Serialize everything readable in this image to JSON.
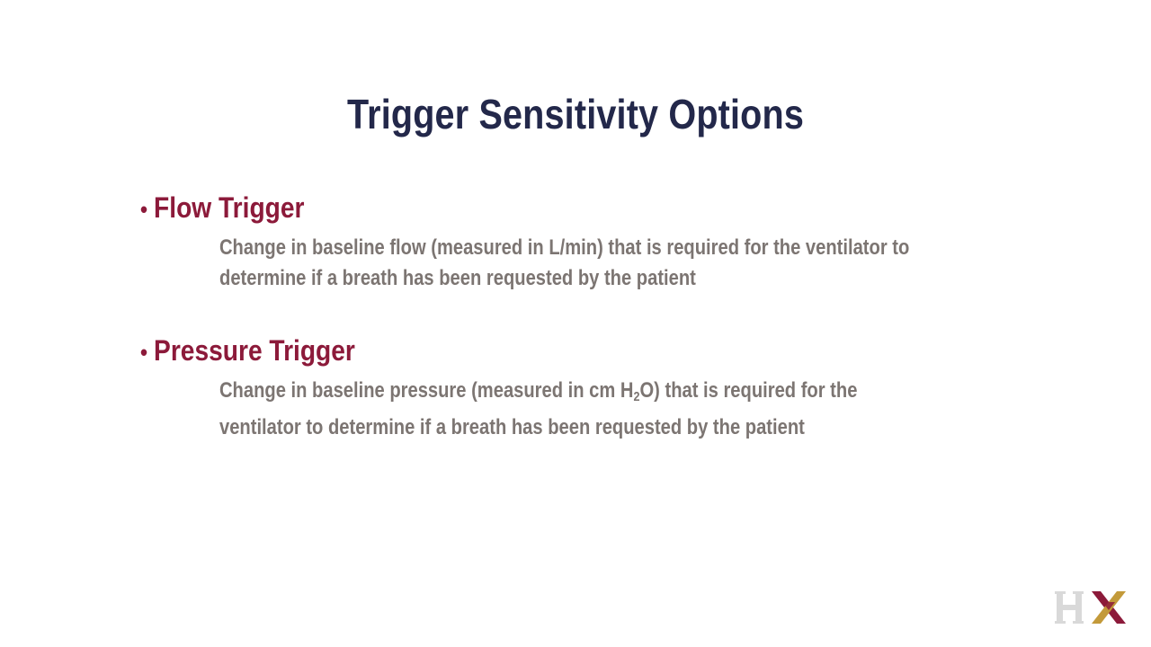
{
  "slide": {
    "title": "Trigger Sensitivity Options"
  },
  "bullets": [
    {
      "heading": "Flow Trigger",
      "lines": [
        "Change in baseline flow (measured in L/min) that is required for the ventilator to",
        "determine if a breath has been requested by the patient"
      ]
    },
    {
      "heading": "Pressure Trigger",
      "line1_before": "Change in baseline pressure  (measured in cm H",
      "line1_sub": "2",
      "line1_after": "O) that is required for the",
      "line2": "ventilator to determine if a breath has been requested by the patient"
    }
  ],
  "logo": {
    "text": "HX",
    "colors": {
      "h": "#d9d9d9",
      "x_left": "#8c1a3a",
      "x_right": "#c39a3a"
    }
  }
}
